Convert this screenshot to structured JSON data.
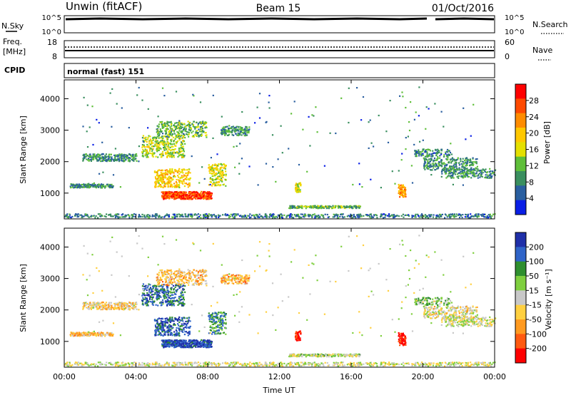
{
  "header": {
    "station": "Unwin (fitACF)",
    "beam": "Beam 15",
    "date": "01/Oct/2016"
  },
  "top_panels": {
    "nsky_label": "N.Sky",
    "nsky_ticks": [
      "10^5",
      "10^0"
    ],
    "nsearch_label": "N.Search",
    "nsearch_ticks": [
      "10^5",
      "10^0"
    ],
    "freq_label_1": "Freq.",
    "freq_label_2": "[MHz]",
    "freq_ticks": [
      "18",
      "8"
    ],
    "nave_label": "Nave",
    "nave_ticks": [
      "60",
      "0"
    ],
    "cpid_label": "CPID",
    "cpid_text": "normal (fast) 151"
  },
  "chart_data": [
    {
      "type": "heatmap",
      "name": "power-panel",
      "ylabel": "Slant Range [km]",
      "xlabel": "",
      "x_ticks": [
        "00:00",
        "04:00",
        "08:00",
        "12:00",
        "16:00",
        "20:00",
        "00:00"
      ],
      "xlim_hours": [
        0,
        24
      ],
      "ylim_km": [
        180,
        4600
      ],
      "y_ticks": [
        1000,
        2000,
        3000,
        4000
      ],
      "colorbar": {
        "label": "Power [dB]",
        "ticks": [
          "28",
          "24",
          "20",
          "16",
          "12",
          "8",
          "4"
        ],
        "colors": [
          "#ff0000",
          "#ff4a00",
          "#ff8c00",
          "#ffc800",
          "#e5e000",
          "#5fbf3a",
          "#3a8f5f",
          "#2a5fa0",
          "#0a1fe6"
        ]
      }
    },
    {
      "type": "heatmap",
      "name": "velocity-panel",
      "ylabel": "Slant Range [km]",
      "xlabel": "Time UT",
      "x_ticks": [
        "00:00",
        "04:00",
        "08:00",
        "12:00",
        "16:00",
        "20:00",
        "00:00"
      ],
      "xlim_hours": [
        0,
        24
      ],
      "ylim_km": [
        180,
        4600
      ],
      "y_ticks": [
        1000,
        2000,
        3000,
        4000
      ],
      "colorbar": {
        "label": "Velocity [m s⁻¹]",
        "ticks": [
          "200",
          "100",
          "50",
          "15",
          "-15",
          "-50",
          "-100",
          "-200"
        ],
        "colors": [
          "#1f2fa8",
          "#2f64c8",
          "#2f8f2f",
          "#7fcf3f",
          "#c8c8c8",
          "#ffd040",
          "#ff9a20",
          "#ff5a10",
          "#ff0000"
        ]
      }
    }
  ]
}
